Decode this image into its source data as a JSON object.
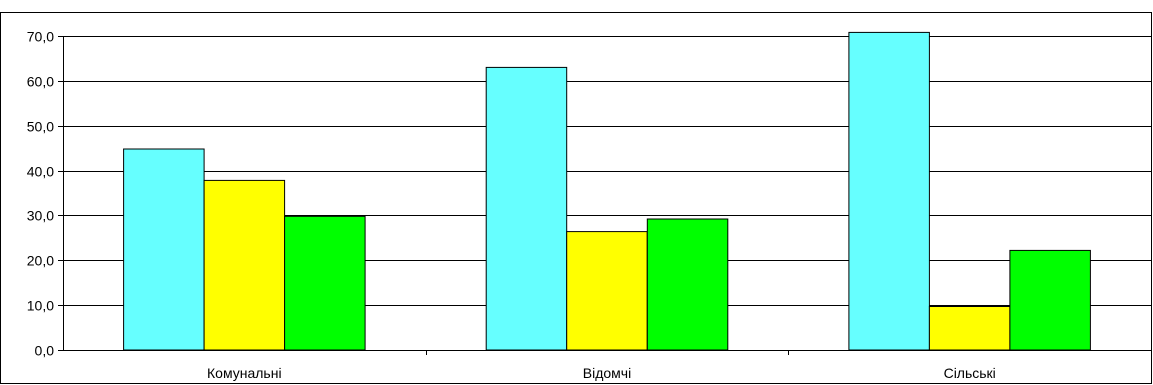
{
  "chart_data": {
    "type": "bar",
    "categories": [
      "Комунальні",
      "Відомчі",
      "Сільські"
    ],
    "series": [
      {
        "values": [
          44.8,
          63.0,
          70.8
        ],
        "color": "#66FFFF"
      },
      {
        "values": [
          37.8,
          26.4,
          9.7
        ],
        "color": "#FFFF00"
      },
      {
        "values": [
          29.8,
          29.2,
          22.2
        ],
        "color": "#00FF00"
      }
    ],
    "yticks": [
      "0,0",
      "10,0",
      "20,0",
      "30,0",
      "40,0",
      "50,0",
      "60,0",
      "70,0"
    ],
    "ylim": [
      0,
      70
    ],
    "grid": true,
    "legend": "none"
  }
}
